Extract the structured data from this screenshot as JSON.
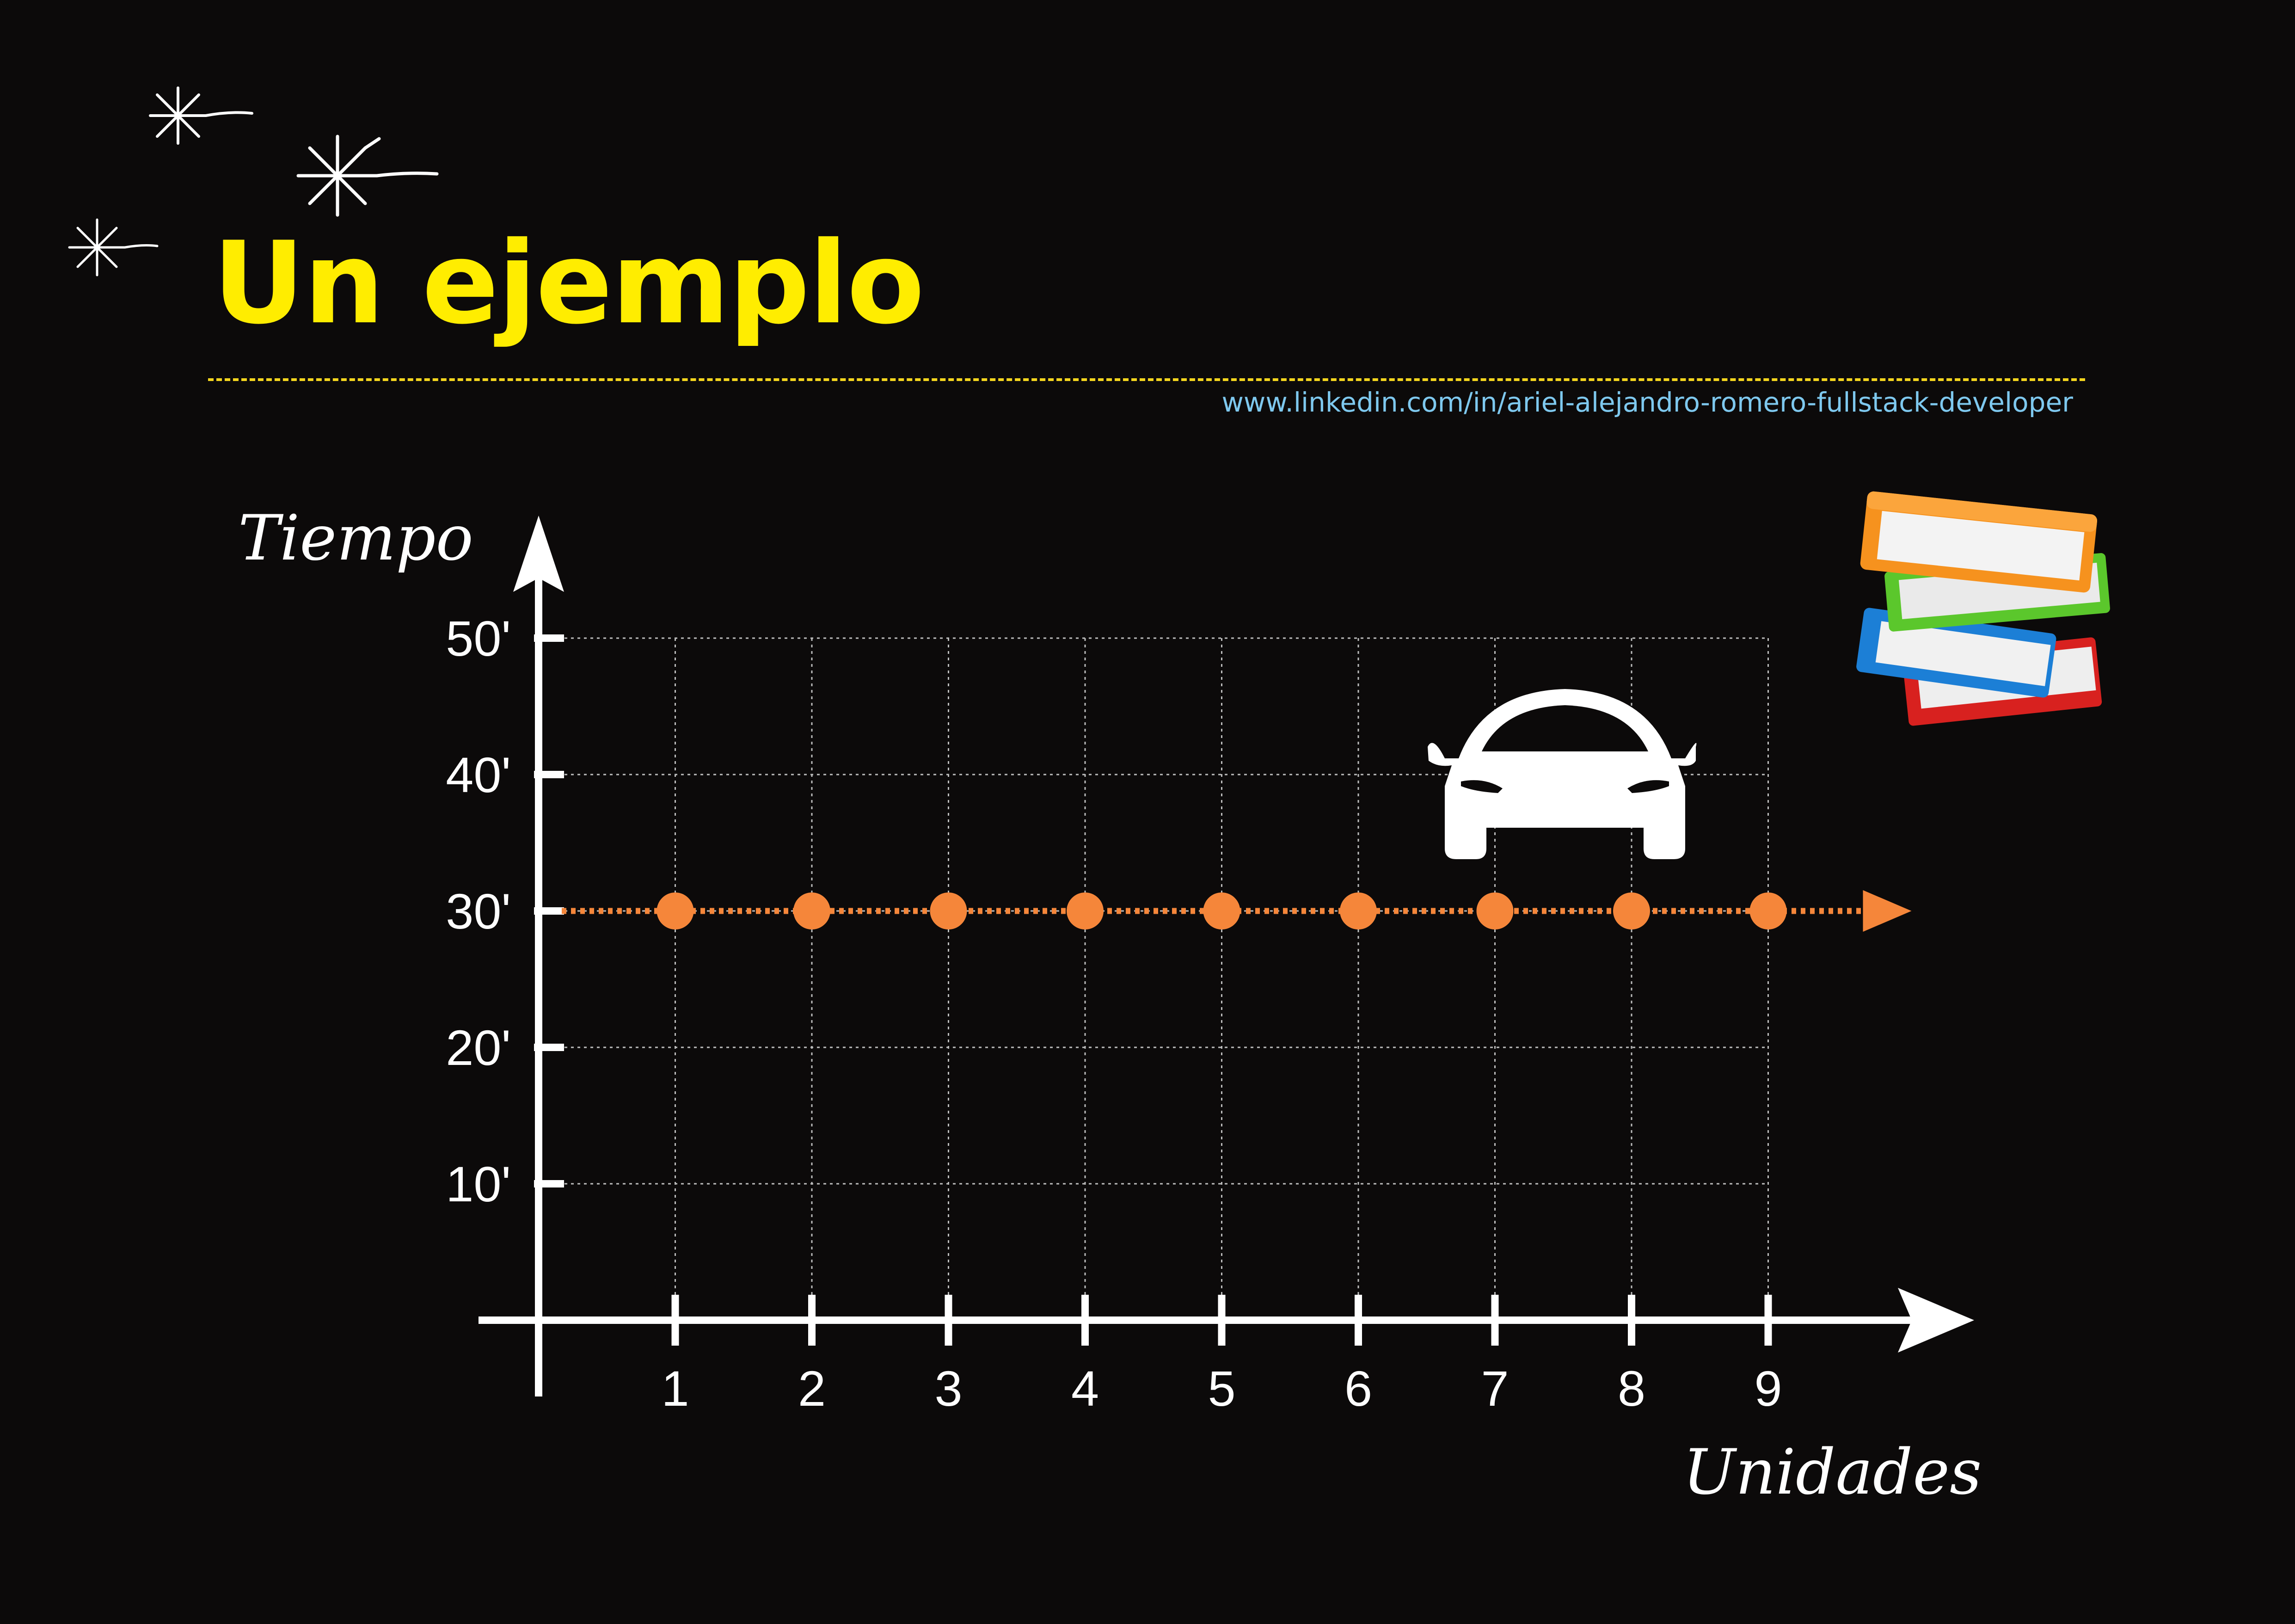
{
  "header": {
    "title": "Un ejemplo",
    "link": "www.linkedin.com/in/ariel-alejandro-romero-fullstack-developer"
  },
  "icons": [
    "sparkle-icon",
    "car-icon",
    "books-icon"
  ],
  "colors": {
    "background": "#0c0a0a",
    "title": "#ffed00",
    "link": "#7ec8ee",
    "series": "#f5863a",
    "axis": "#ffffff",
    "grid": "#bdbdbd"
  },
  "chart_data": {
    "type": "line",
    "xlabel": "Unidades",
    "ylabel": "Tiempo",
    "x": [
      1,
      2,
      3,
      4,
      5,
      6,
      7,
      8,
      9
    ],
    "x_tick_labels": [
      "1",
      "2",
      "3",
      "4",
      "5",
      "6",
      "7",
      "8",
      "9"
    ],
    "y_ticks": [
      10,
      20,
      30,
      40,
      50
    ],
    "y_tick_labels": [
      "10'",
      "20'",
      "30'",
      "40'",
      "50'"
    ],
    "xlim": [
      0,
      9
    ],
    "ylim": [
      0,
      50
    ],
    "series": [
      {
        "values": [
          30,
          30,
          30,
          30,
          30,
          30,
          30,
          30,
          30
        ],
        "color": "#f5863a"
      }
    ],
    "grid": true,
    "continuation_arrow": true
  }
}
